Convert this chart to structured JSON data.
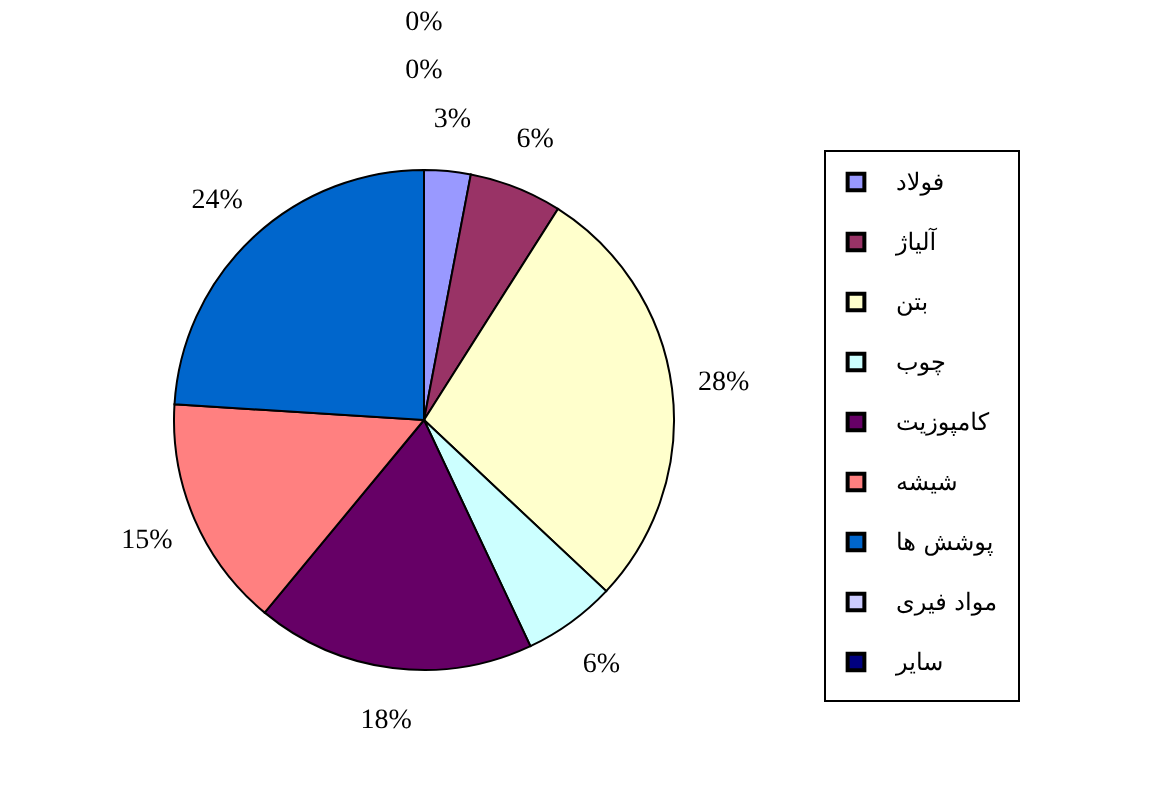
{
  "chart_data": {
    "type": "pie",
    "categories": [
      "فولاد",
      "آلیاژ",
      "بتن",
      "چوب",
      "کامپوزیت",
      "شیشه",
      "پوشش ها",
      "مواد فیری",
      "سایر"
    ],
    "values": [
      3,
      6,
      28,
      6,
      18,
      15,
      24,
      0,
      0
    ],
    "value_labels": [
      "3%",
      "6%",
      "28%",
      "6%",
      "18%",
      "15%",
      "24%",
      "0%",
      "0%"
    ],
    "colors": [
      "#9999ff",
      "#993366",
      "#ffffcc",
      "#ccffff",
      "#660066",
      "#ff8080",
      "#0066cc",
      "#ccccff",
      "#000080"
    ],
    "legend": "right"
  }
}
